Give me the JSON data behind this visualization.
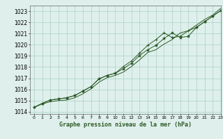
{
  "bg_color": "#dff0ec",
  "grid_color": "#a8cfc4",
  "line_color": "#2d5a27",
  "title": "Graphe pression niveau de la mer (hPa)",
  "xlim": [
    -0.5,
    23
  ],
  "ylim": [
    1013.8,
    1023.5
  ],
  "yticks": [
    1014,
    1015,
    1016,
    1017,
    1018,
    1019,
    1020,
    1021,
    1022,
    1023
  ],
  "xticks": [
    0,
    1,
    2,
    3,
    4,
    5,
    6,
    7,
    8,
    9,
    10,
    11,
    12,
    13,
    14,
    15,
    16,
    17,
    18,
    19,
    20,
    21,
    22,
    23
  ],
  "series1": [
    1014.4,
    1014.7,
    1014.9,
    1015.0,
    1015.05,
    1015.25,
    1015.6,
    1016.05,
    1016.65,
    1017.05,
    1017.25,
    1017.55,
    1018.05,
    1018.65,
    1019.3,
    1019.55,
    1020.05,
    1020.45,
    1021.05,
    1021.25,
    1021.75,
    1022.25,
    1022.65,
    1023.25
  ],
  "series2": [
    1014.4,
    1014.75,
    1015.05,
    1015.15,
    1015.25,
    1015.45,
    1015.85,
    1016.25,
    1016.95,
    1017.25,
    1017.45,
    1018.05,
    1018.55,
    1019.25,
    1019.95,
    1020.45,
    1021.05,
    1020.65,
    1020.75,
    1021.25,
    1021.55,
    1022.05,
    1022.55,
    1023.05
  ],
  "series3": [
    1014.4,
    1014.75,
    1015.05,
    1015.15,
    1015.25,
    1015.45,
    1015.85,
    1016.25,
    1016.95,
    1017.25,
    1017.45,
    1017.85,
    1018.35,
    1019.05,
    1019.55,
    1019.95,
    1020.55,
    1021.05,
    1020.65,
    1020.75,
    1021.55,
    1022.05,
    1022.55,
    1023.05
  ],
  "ytick_fontsize": 5.5,
  "xtick_fontsize": 4.5,
  "xlabel_fontsize": 6,
  "linewidth": 0.7,
  "marker_size": 2.5
}
